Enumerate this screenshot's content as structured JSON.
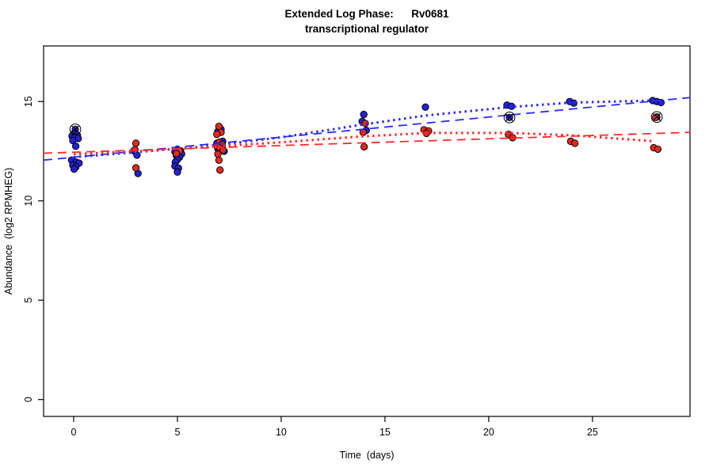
{
  "chart_data": {
    "type": "scatter",
    "title_line1": "Extended Log Phase:      Rv0681",
    "title_line2": "transcriptional regulator",
    "xlabel": "Time  (days)",
    "ylabel": "Abundance  (log2 RPMHEG)",
    "xlim": [
      -1.45,
      29.7
    ],
    "ylim": [
      -0.85,
      17.8
    ],
    "x_ticks": [
      0,
      5,
      10,
      15,
      20,
      25
    ],
    "y_ticks": [
      0,
      5,
      10,
      15
    ],
    "grid": false,
    "legend": "none",
    "outlined_marker": "circle-with-x",
    "point_note": "points are [day, log2_abundance, outlined_flag]",
    "series": [
      {
        "name": "blue-group",
        "color": "#2323cd",
        "points": [
          [
            0.08,
            13.6,
            1
          ],
          [
            0.0,
            13.38
          ],
          [
            0.18,
            13.3
          ],
          [
            -0.08,
            13.26
          ],
          [
            0.06,
            13.2
          ],
          [
            0.22,
            13.14
          ],
          [
            -0.04,
            13.04
          ],
          [
            0.1,
            12.75
          ],
          [
            -0.1,
            12.05
          ],
          [
            0.12,
            11.95
          ],
          [
            0.26,
            11.9
          ],
          [
            -0.04,
            11.8
          ],
          [
            0.1,
            11.7
          ],
          [
            0.02,
            11.6
          ],
          [
            2.9,
            12.52
          ],
          [
            3.05,
            12.3
          ],
          [
            3.1,
            11.38
          ],
          [
            5.0,
            12.6
          ],
          [
            5.15,
            12.52
          ],
          [
            4.88,
            12.48
          ],
          [
            5.05,
            12.42
          ],
          [
            5.2,
            12.36
          ],
          [
            4.95,
            12.28
          ],
          [
            5.1,
            12.2
          ],
          [
            5.0,
            12.08
          ],
          [
            4.9,
            11.95
          ],
          [
            4.88,
            11.75
          ],
          [
            5.05,
            11.65
          ],
          [
            5.0,
            11.45
          ],
          [
            7.1,
            13.6
          ],
          [
            6.95,
            13.5
          ],
          [
            7.18,
            13.0
          ],
          [
            6.9,
            12.9
          ],
          [
            7.05,
            12.82
          ],
          [
            7.15,
            12.72
          ],
          [
            6.95,
            12.62
          ],
          [
            7.25,
            12.5
          ],
          [
            13.98,
            14.35
          ],
          [
            13.9,
            14.0
          ],
          [
            14.1,
            13.55
          ],
          [
            16.95,
            14.72
          ],
          [
            20.88,
            14.82
          ],
          [
            21.1,
            14.76
          ],
          [
            21.0,
            14.2,
            1
          ],
          [
            23.9,
            15.0
          ],
          [
            24.1,
            14.92
          ],
          [
            27.9,
            15.05
          ],
          [
            28.1,
            15.0
          ],
          [
            28.3,
            14.95
          ],
          [
            28.1,
            14.22,
            1
          ]
        ]
      },
      {
        "name": "red-group",
        "color": "#de2a20",
        "points": [
          [
            3.0,
            12.9
          ],
          [
            2.95,
            12.58
          ],
          [
            3.0,
            11.66
          ],
          [
            5.1,
            12.52
          ],
          [
            4.95,
            12.38
          ],
          [
            7.0,
            13.75
          ],
          [
            7.1,
            13.45
          ],
          [
            6.9,
            13.35
          ],
          [
            7.02,
            12.95
          ],
          [
            7.15,
            12.85
          ],
          [
            6.9,
            12.76
          ],
          [
            7.05,
            12.66
          ],
          [
            7.2,
            12.56
          ],
          [
            6.95,
            12.35
          ],
          [
            7.0,
            12.05
          ],
          [
            7.05,
            11.55
          ],
          [
            14.05,
            13.9
          ],
          [
            13.95,
            13.45
          ],
          [
            14.0,
            12.72
          ],
          [
            16.88,
            13.58
          ],
          [
            17.1,
            13.52
          ],
          [
            17.0,
            13.4
          ],
          [
            20.95,
            13.35
          ],
          [
            21.15,
            13.18
          ],
          [
            23.95,
            13.0
          ],
          [
            24.15,
            12.9
          ],
          [
            28.05,
            14.2
          ],
          [
            27.95,
            12.68
          ],
          [
            28.15,
            12.6
          ]
        ]
      }
    ],
    "trend_lines": [
      {
        "name": "blue-dashed-fit",
        "style": "dashed",
        "color": "#2a2aff",
        "points": [
          [
            -1.45,
            12.05
          ],
          [
            29.7,
            15.2
          ]
        ]
      },
      {
        "name": "red-dashed-fit",
        "style": "dashed",
        "color": "#ff2a2a",
        "points": [
          [
            -1.45,
            12.4
          ],
          [
            29.7,
            13.45
          ]
        ]
      },
      {
        "name": "blue-dotted-fit",
        "style": "dotted",
        "color": "#2a2aff",
        "points": [
          [
            0,
            12.2
          ],
          [
            3,
            12.45
          ],
          [
            5,
            12.62
          ],
          [
            7,
            12.82
          ],
          [
            10,
            13.2
          ],
          [
            14,
            13.85
          ],
          [
            17,
            14.3
          ],
          [
            21,
            14.72
          ],
          [
            24,
            14.95
          ],
          [
            28,
            15.05
          ]
        ]
      },
      {
        "name": "red-dotted-fit",
        "style": "dotted",
        "color": "#ff2a2a",
        "points": [
          [
            0,
            12.35
          ],
          [
            3,
            12.5
          ],
          [
            5,
            12.62
          ],
          [
            7,
            12.75
          ],
          [
            10,
            12.95
          ],
          [
            14,
            13.25
          ],
          [
            17,
            13.42
          ],
          [
            21,
            13.42
          ],
          [
            24,
            13.3
          ],
          [
            28,
            13.0
          ]
        ]
      }
    ]
  }
}
